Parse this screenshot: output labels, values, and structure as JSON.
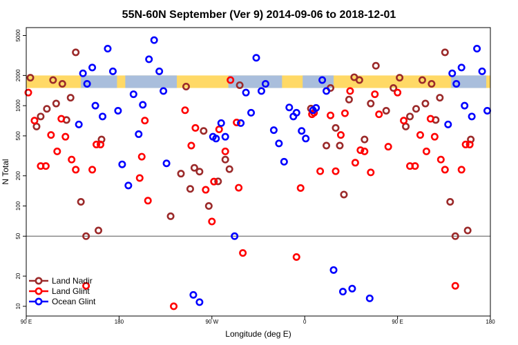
{
  "chart_data": {
    "type": "scatter",
    "title": "55N-60N September (Ver 9)   2014-09-06 to 2018-12-01",
    "xlabel": "Longitude (deg E)",
    "ylabel": "N Total",
    "yscale": "log",
    "xlim": [
      0,
      450
    ],
    "ylim": [
      8,
      6000
    ],
    "xticks": [
      {
        "value": 0,
        "label": "90 E"
      },
      {
        "value": 90,
        "label": "180"
      },
      {
        "value": 180,
        "label": "90 W"
      },
      {
        "value": 270,
        "label": "0"
      },
      {
        "value": 360,
        "label": "90 E"
      },
      {
        "value": 450,
        "label": "180"
      }
    ],
    "yticks": [
      {
        "value": 10,
        "label": "10"
      },
      {
        "value": 20,
        "label": "20"
      },
      {
        "value": 50,
        "label": "50"
      },
      {
        "value": 100,
        "label": "100"
      },
      {
        "value": 200,
        "label": "200"
      },
      {
        "value": 500,
        "label": "500"
      },
      {
        "value": 1000,
        "label": "1000"
      },
      {
        "value": 2000,
        "label": "2000"
      },
      {
        "value": 5000,
        "label": "5000"
      }
    ],
    "reference_line": 50,
    "land_band": {
      "low": 1500,
      "high": 2000,
      "land_color": "#ffd966",
      "ocean_color": "#a9bedc"
    },
    "legend": {
      "position": "bottom-left"
    },
    "series": [
      {
        "name": "Land Nadir",
        "color": "#9b2a2a",
        "points": [
          {
            "x": 4,
            "y": 1900
          },
          {
            "x": 10,
            "y": 620
          },
          {
            "x": 14,
            "y": 780
          },
          {
            "x": 20,
            "y": 930
          },
          {
            "x": 26,
            "y": 1800
          },
          {
            "x": 29,
            "y": 1050
          },
          {
            "x": 35,
            "y": 1650
          },
          {
            "x": 39,
            "y": 720
          },
          {
            "x": 43,
            "y": 1200
          },
          {
            "x": 48,
            "y": 3400
          },
          {
            "x": 53,
            "y": 110
          },
          {
            "x": 58,
            "y": 50
          },
          {
            "x": 70,
            "y": 57
          },
          {
            "x": 73,
            "y": 460
          },
          {
            "x": 140,
            "y": 79
          },
          {
            "x": 150,
            "y": 210
          },
          {
            "x": 155,
            "y": 1550
          },
          {
            "x": 159,
            "y": 148
          },
          {
            "x": 163,
            "y": 240
          },
          {
            "x": 168,
            "y": 220
          },
          {
            "x": 172,
            "y": 560
          },
          {
            "x": 177,
            "y": 100
          },
          {
            "x": 186,
            "y": 176
          },
          {
            "x": 193,
            "y": 290
          },
          {
            "x": 197,
            "y": 233
          },
          {
            "x": 207,
            "y": 1600
          },
          {
            "x": 276,
            "y": 935
          },
          {
            "x": 291,
            "y": 400
          },
          {
            "x": 295,
            "y": 1500
          },
          {
            "x": 300,
            "y": 600
          },
          {
            "x": 304,
            "y": 400
          },
          {
            "x": 308,
            "y": 130
          },
          {
            "x": 313,
            "y": 1150
          },
          {
            "x": 318,
            "y": 1920
          },
          {
            "x": 323,
            "y": 1800
          },
          {
            "x": 328,
            "y": 460
          },
          {
            "x": 334,
            "y": 1050
          },
          {
            "x": 339,
            "y": 2500
          },
          {
            "x": 349,
            "y": 890
          },
          {
            "x": 356,
            "y": 1500
          },
          {
            "x": 362,
            "y": 1900
          },
          {
            "x": 368,
            "y": 620
          },
          {
            "x": 372,
            "y": 780
          },
          {
            "x": 378,
            "y": 930
          },
          {
            "x": 384,
            "y": 1800
          },
          {
            "x": 387,
            "y": 1050
          },
          {
            "x": 393,
            "y": 1650
          },
          {
            "x": 397,
            "y": 720
          },
          {
            "x": 401,
            "y": 1200
          },
          {
            "x": 406,
            "y": 3400
          },
          {
            "x": 411,
            "y": 110
          },
          {
            "x": 416,
            "y": 50
          },
          {
            "x": 428,
            "y": 57
          },
          {
            "x": 431,
            "y": 460
          }
        ]
      },
      {
        "name": "Land Glint",
        "color": "#ff0000",
        "points": [
          {
            "x": 2,
            "y": 1350
          },
          {
            "x": 8,
            "y": 710
          },
          {
            "x": 14,
            "y": 250
          },
          {
            "x": 19,
            "y": 250
          },
          {
            "x": 24,
            "y": 510
          },
          {
            "x": 30,
            "y": 350
          },
          {
            "x": 34,
            "y": 740
          },
          {
            "x": 38,
            "y": 490
          },
          {
            "x": 44,
            "y": 290
          },
          {
            "x": 48,
            "y": 230
          },
          {
            "x": 58,
            "y": 16
          },
          {
            "x": 64,
            "y": 230
          },
          {
            "x": 68,
            "y": 410
          },
          {
            "x": 72,
            "y": 410
          },
          {
            "x": 110,
            "y": 190
          },
          {
            "x": 112,
            "y": 310
          },
          {
            "x": 115,
            "y": 710
          },
          {
            "x": 118,
            "y": 113
          },
          {
            "x": 143,
            "y": 10
          },
          {
            "x": 154,
            "y": 900
          },
          {
            "x": 160,
            "y": 400
          },
          {
            "x": 164,
            "y": 600
          },
          {
            "x": 174,
            "y": 145
          },
          {
            "x": 180,
            "y": 70
          },
          {
            "x": 182,
            "y": 175
          },
          {
            "x": 187,
            "y": 580
          },
          {
            "x": 193,
            "y": 350
          },
          {
            "x": 198,
            "y": 1800
          },
          {
            "x": 204,
            "y": 680
          },
          {
            "x": 206,
            "y": 152
          },
          {
            "x": 210,
            "y": 34
          },
          {
            "x": 262,
            "y": 31
          },
          {
            "x": 266,
            "y": 151
          },
          {
            "x": 277,
            "y": 820
          },
          {
            "x": 279,
            "y": 850
          },
          {
            "x": 285,
            "y": 222
          },
          {
            "x": 295,
            "y": 800
          },
          {
            "x": 300,
            "y": 222
          },
          {
            "x": 305,
            "y": 510
          },
          {
            "x": 309,
            "y": 840
          },
          {
            "x": 314,
            "y": 1400
          },
          {
            "x": 319,
            "y": 270
          },
          {
            "x": 324,
            "y": 360
          },
          {
            "x": 328,
            "y": 350
          },
          {
            "x": 334,
            "y": 216
          },
          {
            "x": 338,
            "y": 1300
          },
          {
            "x": 342,
            "y": 820
          },
          {
            "x": 351,
            "y": 390
          },
          {
            "x": 360,
            "y": 1350
          },
          {
            "x": 366,
            "y": 710
          },
          {
            "x": 372,
            "y": 250
          },
          {
            "x": 377,
            "y": 250
          },
          {
            "x": 382,
            "y": 510
          },
          {
            "x": 388,
            "y": 350
          },
          {
            "x": 392,
            "y": 740
          },
          {
            "x": 396,
            "y": 490
          },
          {
            "x": 402,
            "y": 290
          },
          {
            "x": 406,
            "y": 230
          },
          {
            "x": 416,
            "y": 16
          },
          {
            "x": 422,
            "y": 230
          },
          {
            "x": 426,
            "y": 410
          },
          {
            "x": 430,
            "y": 410
          }
        ]
      },
      {
        "name": "Ocean Glint",
        "color": "#0000ff",
        "points": [
          {
            "x": 51,
            "y": 650
          },
          {
            "x": 55,
            "y": 2100
          },
          {
            "x": 59,
            "y": 1650
          },
          {
            "x": 64,
            "y": 2400
          },
          {
            "x": 67,
            "y": 1000
          },
          {
            "x": 74,
            "y": 780
          },
          {
            "x": 79,
            "y": 3700
          },
          {
            "x": 84,
            "y": 2200
          },
          {
            "x": 89,
            "y": 890
          },
          {
            "x": 93,
            "y": 260
          },
          {
            "x": 99,
            "y": 160
          },
          {
            "x": 104,
            "y": 1300
          },
          {
            "x": 109,
            "y": 520
          },
          {
            "x": 113,
            "y": 1020
          },
          {
            "x": 119,
            "y": 2900
          },
          {
            "x": 124,
            "y": 4500
          },
          {
            "x": 129,
            "y": 2200
          },
          {
            "x": 133,
            "y": 1400
          },
          {
            "x": 136,
            "y": 266
          },
          {
            "x": 162,
            "y": 13
          },
          {
            "x": 168,
            "y": 11
          },
          {
            "x": 181,
            "y": 490
          },
          {
            "x": 184,
            "y": 470
          },
          {
            "x": 189,
            "y": 670
          },
          {
            "x": 193,
            "y": 490
          },
          {
            "x": 202,
            "y": 50
          },
          {
            "x": 208,
            "y": 670
          },
          {
            "x": 213,
            "y": 1350
          },
          {
            "x": 218,
            "y": 850
          },
          {
            "x": 223,
            "y": 3000
          },
          {
            "x": 228,
            "y": 1400
          },
          {
            "x": 232,
            "y": 1650
          },
          {
            "x": 240,
            "y": 570
          },
          {
            "x": 245,
            "y": 420
          },
          {
            "x": 250,
            "y": 276
          },
          {
            "x": 255,
            "y": 960
          },
          {
            "x": 259,
            "y": 780
          },
          {
            "x": 262,
            "y": 850
          },
          {
            "x": 267,
            "y": 560
          },
          {
            "x": 271,
            "y": 470
          },
          {
            "x": 278,
            "y": 900
          },
          {
            "x": 281,
            "y": 950
          },
          {
            "x": 287,
            "y": 1800
          },
          {
            "x": 291,
            "y": 1400
          },
          {
            "x": 298,
            "y": 23
          },
          {
            "x": 307,
            "y": 14
          },
          {
            "x": 316,
            "y": 15
          },
          {
            "x": 333,
            "y": 12
          },
          {
            "x": 409,
            "y": 650
          },
          {
            "x": 413,
            "y": 2100
          },
          {
            "x": 417,
            "y": 1650
          },
          {
            "x": 422,
            "y": 2400
          },
          {
            "x": 425,
            "y": 1000
          },
          {
            "x": 432,
            "y": 780
          },
          {
            "x": 437,
            "y": 3700
          },
          {
            "x": 442,
            "y": 2200
          },
          {
            "x": 447,
            "y": 890
          }
        ]
      }
    ]
  }
}
